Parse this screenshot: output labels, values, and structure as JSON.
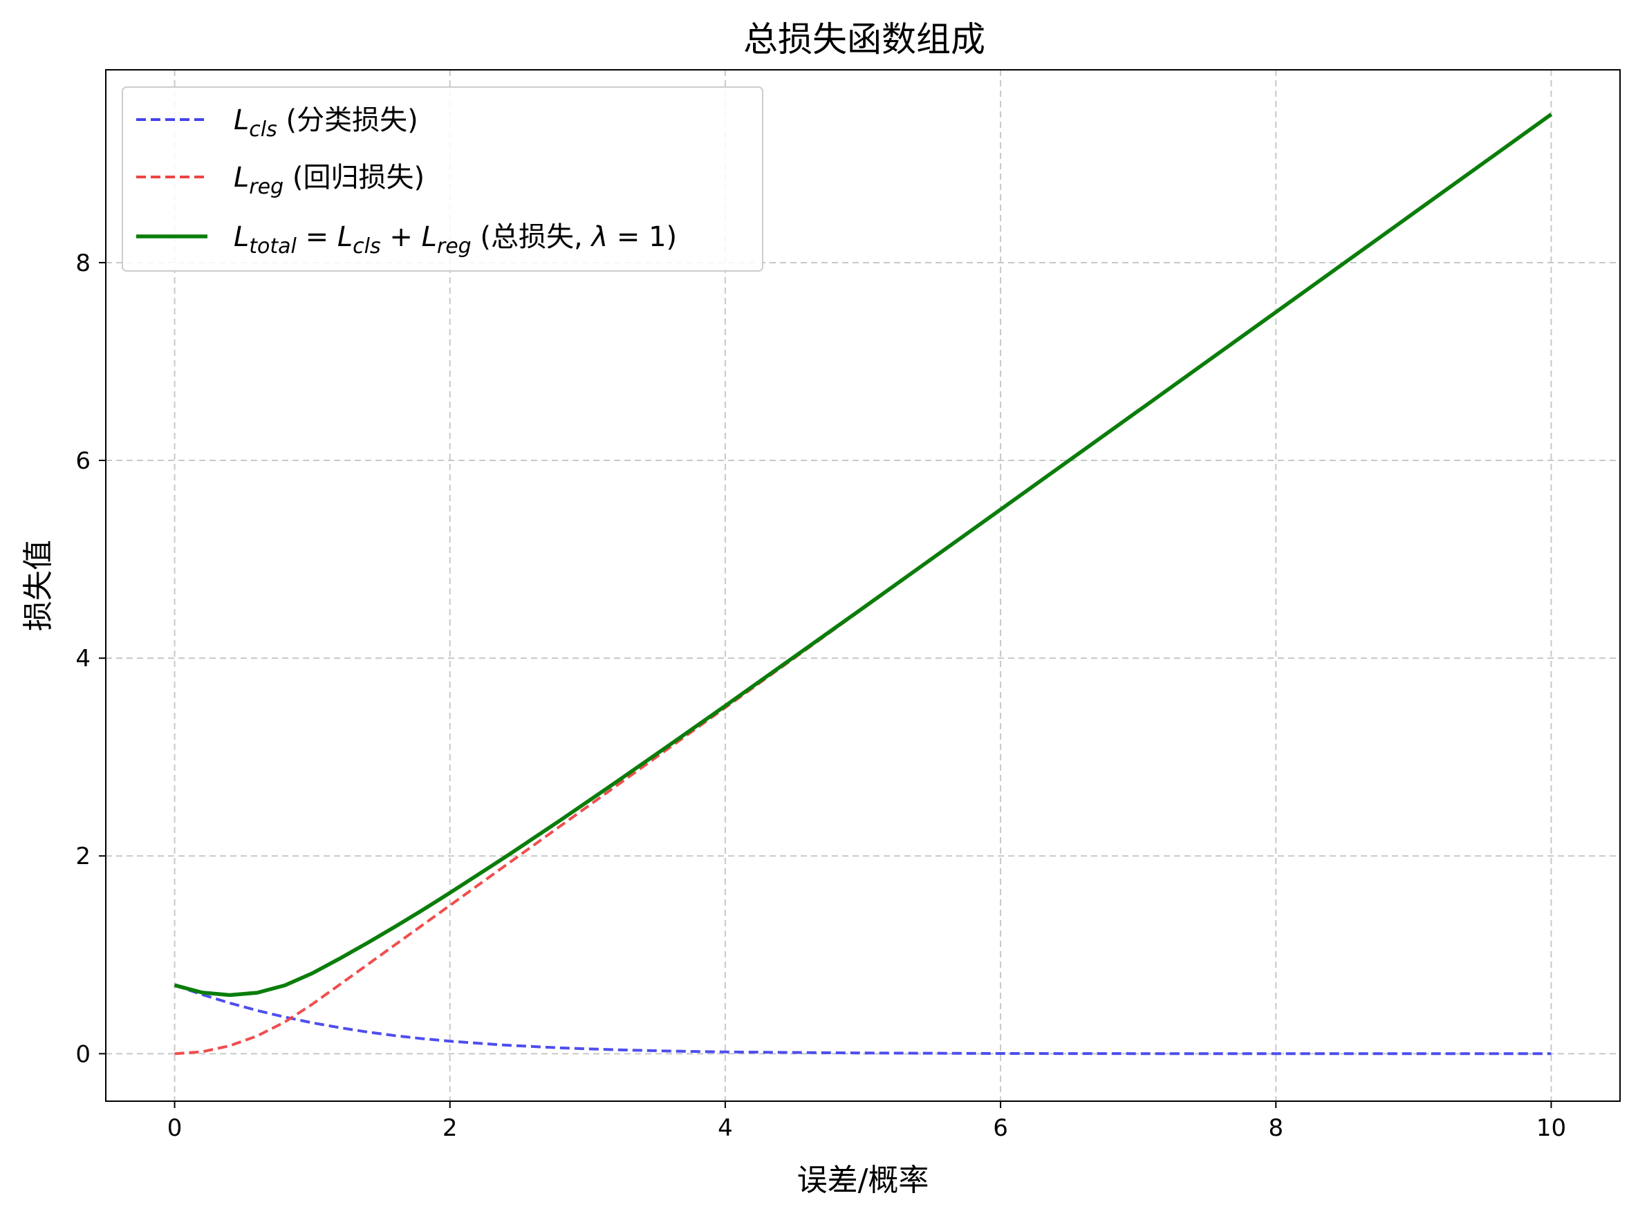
{
  "chart_data": {
    "type": "line",
    "title": "总损失函数组成",
    "xlabel": "误差/概率",
    "ylabel": "损失值",
    "xlim": [
      -0.5,
      10.5
    ],
    "ylim": [
      -0.48,
      9.95
    ],
    "xticks": [
      0,
      2,
      4,
      6,
      8,
      10
    ],
    "yticks": [
      0,
      2,
      4,
      6,
      8
    ],
    "grid": true,
    "grid_style": "dashed",
    "legend_position": "top-left",
    "series": [
      {
        "name": "L_cls (分类损失)",
        "legend": {
          "main": "L",
          "sub": "cls",
          "rest": " (分类损失)"
        },
        "color": "#4444ee",
        "style": "dashed",
        "x": [
          0,
          0.2,
          0.4,
          0.6,
          0.8,
          1.0,
          1.2,
          1.4,
          1.6,
          1.8,
          2.0,
          2.4,
          2.8,
          3.2,
          3.6,
          4.0,
          5.0,
          6.0,
          7.0,
          8.0,
          9.0,
          10.0
        ],
        "y": [
          0.693,
          0.598,
          0.513,
          0.437,
          0.371,
          0.313,
          0.263,
          0.22,
          0.183,
          0.152,
          0.127,
          0.087,
          0.059,
          0.04,
          0.027,
          0.018,
          0.007,
          0.0025,
          0.0009,
          0.0003,
          0.0001,
          0.0
        ]
      },
      {
        "name": "L_reg (回归损失)",
        "legend": {
          "main": "L",
          "sub": "reg",
          "rest": " (回归损失)"
        },
        "color": "#ee4444",
        "style": "dashed",
        "x": [
          0,
          0.2,
          0.4,
          0.6,
          0.8,
          1.0,
          1.2,
          1.4,
          1.6,
          1.8,
          2.0,
          2.4,
          2.8,
          3.2,
          3.6,
          4.0,
          5.0,
          6.0,
          7.0,
          8.0,
          9.0,
          10.0
        ],
        "y": [
          0.0,
          0.02,
          0.08,
          0.18,
          0.32,
          0.5,
          0.7,
          0.9,
          1.1,
          1.3,
          1.5,
          1.9,
          2.3,
          2.7,
          3.1,
          3.5,
          4.5,
          5.5,
          6.5,
          7.5,
          8.5,
          9.5
        ]
      },
      {
        "name": "L_total = L_cls + L_reg (总损失, λ = 1)",
        "legend": {
          "main": "L",
          "sub": "total",
          "rest": " (总损失, λ = 1)"
        },
        "color": "#0a7d0a",
        "style": "solid",
        "x": [
          0,
          0.2,
          0.4,
          0.6,
          0.8,
          1.0,
          1.2,
          1.4,
          1.6,
          1.8,
          2.0,
          2.4,
          2.8,
          3.2,
          3.6,
          4.0,
          5.0,
          6.0,
          7.0,
          8.0,
          9.0,
          10.0
        ],
        "y": [
          0.693,
          0.618,
          0.593,
          0.617,
          0.691,
          0.813,
          0.963,
          1.12,
          1.283,
          1.452,
          1.627,
          1.987,
          2.359,
          2.74,
          3.127,
          3.518,
          4.507,
          5.503,
          6.501,
          7.5,
          8.5,
          9.5
        ]
      }
    ]
  }
}
